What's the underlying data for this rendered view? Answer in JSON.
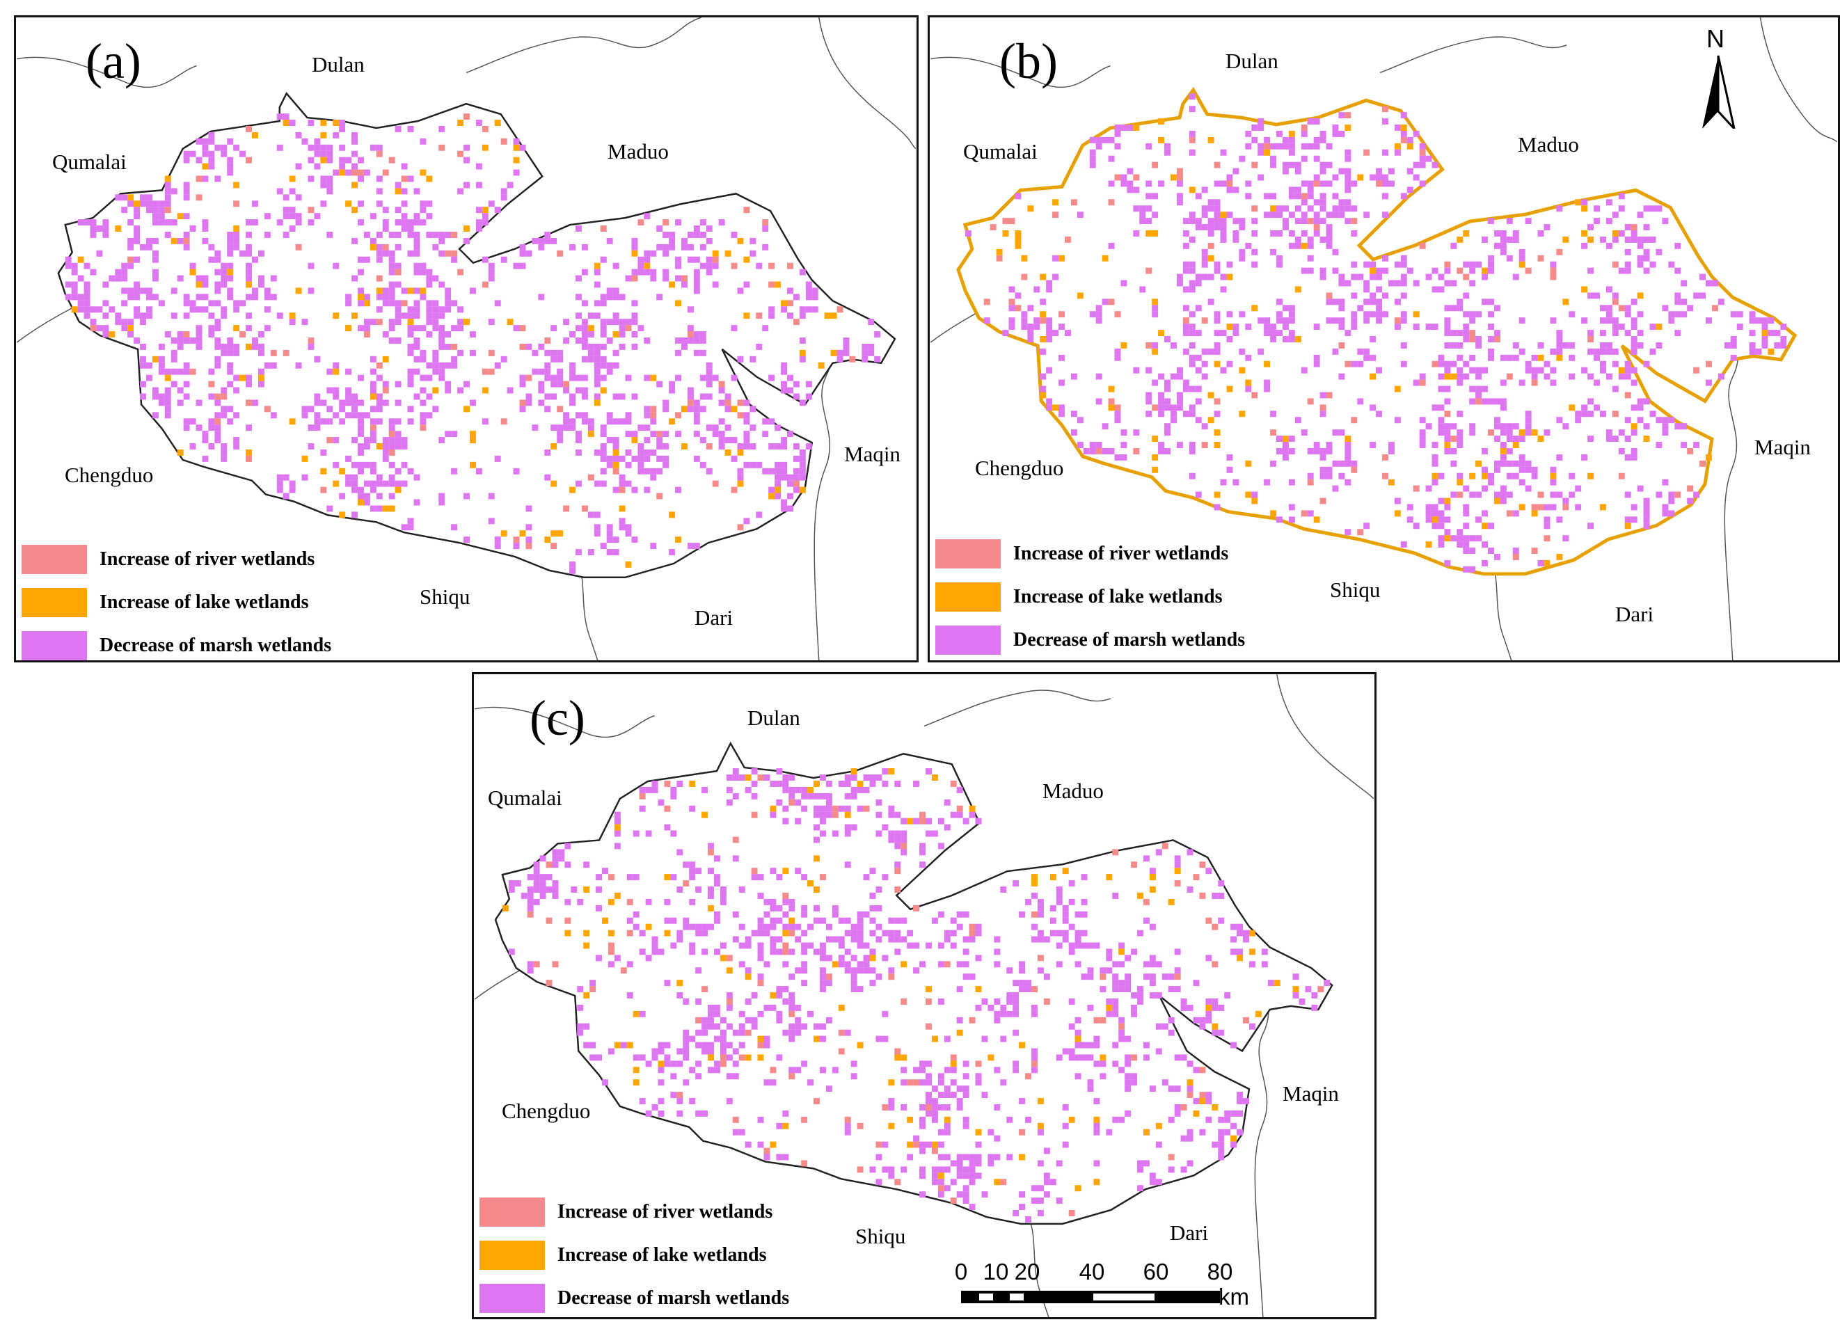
{
  "colors": {
    "river": "#F58A8A",
    "lake": "#FFA500",
    "marsh": "#DD76F0",
    "boundary": "#222222",
    "lake_outline": "#E6A000"
  },
  "legend": {
    "river": "Increase of river wetlands",
    "lake": "Increase of lake wetlands",
    "marsh": "Decrease of marsh wetlands"
  },
  "panels": [
    {
      "letter": "(a)",
      "places": {
        "dulan": "Dulan",
        "qumalai": "Qumalai",
        "maduo": "Maduo",
        "maqin": "Maqin",
        "chengduo": "Chengduo",
        "shiqu": "Shiqu",
        "dari": "Dari"
      }
    },
    {
      "letter": "(b)",
      "places": {
        "dulan": "Dulan",
        "qumalai": "Qumalai",
        "maduo": "Maduo",
        "maqin": "Maqin",
        "chengduo": "Chengduo",
        "shiqu": "Shiqu",
        "dari": "Dari"
      },
      "north_arrow": "N"
    },
    {
      "letter": "(c)",
      "places": {
        "dulan": "Dulan",
        "qumalai": "Qumalai",
        "maduo": "Maduo",
        "maqin": "Maqin",
        "chengduo": "Chengduo",
        "shiqu": "Shiqu",
        "dari": "Dari"
      },
      "scale_bar": {
        "ticks": [
          "0",
          "10",
          "20",
          "40",
          "60",
          "80"
        ],
        "unit": "km"
      }
    }
  ]
}
